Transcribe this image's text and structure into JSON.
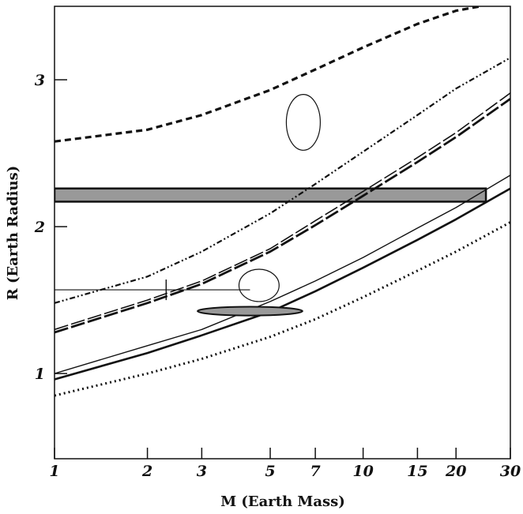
{
  "chart_data": {
    "type": "line",
    "title": "",
    "xlabel": "M (Earth Mass)",
    "ylabel": "R (Earth Radius)",
    "xscale": "log",
    "yscale": "linear",
    "xlim": [
      1,
      30
    ],
    "ylim": [
      0.42,
      3.5
    ],
    "x_ticks": [
      1,
      2,
      3,
      5,
      7,
      10,
      15,
      20,
      30
    ],
    "x_tick_labels": [
      "1",
      "2",
      "3",
      "5",
      "7",
      "10",
      "15",
      "20",
      "30"
    ],
    "y_ticks": [
      1,
      2,
      3
    ],
    "y_tick_labels": [
      "1",
      "2",
      "3"
    ],
    "grid": false,
    "legend": "none",
    "series": [
      {
        "style": "dashed-thick",
        "color": "#111111",
        "x": [
          1,
          2,
          3,
          5,
          7,
          10,
          15,
          20,
          24
        ],
        "y": [
          2.58,
          2.66,
          2.76,
          2.93,
          3.07,
          3.22,
          3.38,
          3.47,
          3.5
        ]
      },
      {
        "style": "dash-dot-dot",
        "color": "#111111",
        "x": [
          1,
          2,
          3,
          5,
          7,
          10,
          15,
          20,
          30
        ],
        "y": [
          1.48,
          1.66,
          1.83,
          2.09,
          2.29,
          2.51,
          2.76,
          2.94,
          3.15
        ]
      },
      {
        "style": "long-dash-thin",
        "color": "#111111",
        "x": [
          1,
          2,
          3,
          5,
          7,
          10,
          15,
          20,
          30
        ],
        "y": [
          1.3,
          1.5,
          1.63,
          1.85,
          2.04,
          2.24,
          2.47,
          2.64,
          2.91
        ]
      },
      {
        "style": "long-dash-thick",
        "color": "#111111",
        "x": [
          1,
          2,
          3,
          5,
          7,
          10,
          15,
          20,
          30
        ],
        "y": [
          1.28,
          1.48,
          1.61,
          1.83,
          2.01,
          2.21,
          2.44,
          2.61,
          2.87
        ]
      },
      {
        "style": "solid-thin",
        "color": "#111111",
        "x": [
          1,
          2,
          3,
          5,
          7,
          10,
          15,
          20,
          30
        ],
        "y": [
          1.0,
          1.19,
          1.3,
          1.49,
          1.63,
          1.79,
          1.99,
          2.13,
          2.35
        ]
      },
      {
        "style": "solid-thick",
        "color": "#111111",
        "x": [
          1,
          2,
          3,
          5,
          7,
          10,
          15,
          20,
          30
        ],
        "y": [
          0.96,
          1.14,
          1.26,
          1.42,
          1.56,
          1.72,
          1.91,
          2.05,
          2.26
        ]
      },
      {
        "style": "dotted",
        "color": "#111111",
        "x": [
          1,
          2,
          3,
          5,
          7,
          10,
          15,
          20,
          30
        ],
        "y": [
          0.85,
          1.0,
          1.1,
          1.25,
          1.37,
          1.52,
          1.7,
          1.83,
          2.03
        ]
      }
    ],
    "annotations": [
      {
        "kind": "band",
        "fill": "#999999",
        "x": [
          1,
          25
        ],
        "y": [
          2.17,
          2.26
        ]
      },
      {
        "kind": "ellipse",
        "fill": "none",
        "cx": 6.4,
        "cy": 2.71,
        "rx_decades": 0.055,
        "ry": 0.19
      },
      {
        "kind": "ellipse",
        "fill": "none",
        "cx": 4.6,
        "cy": 1.6,
        "rx_decades": 0.065,
        "ry": 0.11
      },
      {
        "kind": "ellipse",
        "fill": "#999999",
        "cx": 4.3,
        "cy": 1.425,
        "rx_decades": 0.17,
        "ry": 0.03
      },
      {
        "kind": "errorbar",
        "x": [
          1,
          4.3
        ],
        "y": 1.57,
        "cross_x": 2.3,
        "cross_y": [
          1.5,
          1.64
        ]
      }
    ]
  }
}
